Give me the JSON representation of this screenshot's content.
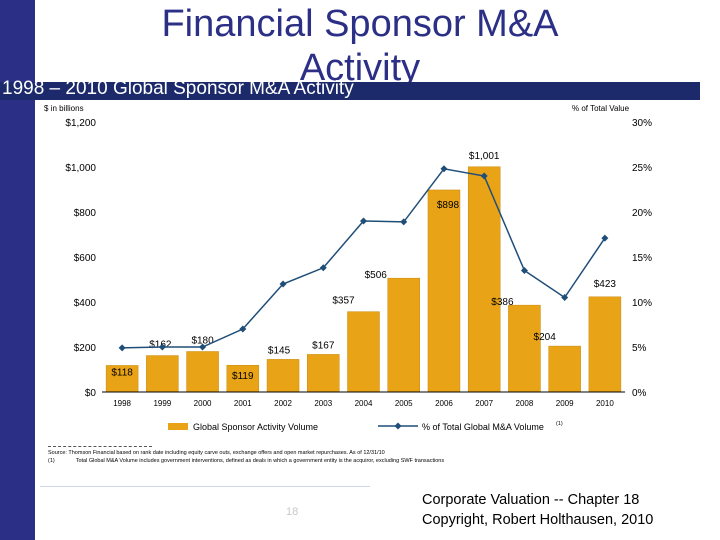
{
  "slide": {
    "title": "Financial Sponsor M&A Activity",
    "subtitle": "1998 – 2010 Global Sponsor M&A Activity",
    "page_number": "18",
    "copyright_line1": "Corporate Valuation -- Chapter 18",
    "copyright_line2": "Copyright, Robert Holthausen, 2010"
  },
  "notes": {
    "source": "Source: Thomson Financial based on rank date including equity carve outs, exchange offers and open market repurchases. As of 12/31/10",
    "footnote_marker": "(1)",
    "footnote": "Total Global M&A Volume includes government interventions, defined as deals in which a government entity is the acquiror, excluding SWF transactions"
  },
  "chart_data": {
    "type": "bar",
    "title": "",
    "left_axis_unit": "$ in billions",
    "right_axis_unit": "% of Total Value",
    "categories": [
      "1998",
      "1999",
      "2000",
      "2001",
      "2002",
      "2003",
      "2004",
      "2005",
      "2006",
      "2007",
      "2008",
      "2009",
      "2010"
    ],
    "ylim": [
      0,
      1200
    ],
    "yticks": [
      0,
      200,
      400,
      600,
      800,
      1000,
      1200
    ],
    "ytick_labels": [
      "$0",
      "$200",
      "$400",
      "$600",
      "$800",
      "$1,000",
      "$1,200"
    ],
    "y2lim": [
      0,
      30
    ],
    "y2ticks": [
      0,
      5,
      10,
      15,
      20,
      25,
      30
    ],
    "y2tick_labels": [
      "0%",
      "5%",
      "10%",
      "15%",
      "20%",
      "25%",
      "30%"
    ],
    "series": [
      {
        "name": "Global Sponsor Activity Volume",
        "type": "bar",
        "axis": "left",
        "color": "#e8a317",
        "values": [
          118,
          162,
          180,
          119,
          145,
          167,
          357,
          506,
          898,
          1001,
          386,
          204,
          423
        ],
        "labels": [
          "$118",
          "$162",
          "$180",
          "$119",
          "$145",
          "$167",
          "$357",
          "$506",
          "$898",
          "$1,001",
          "$386",
          "$204",
          "$423"
        ]
      },
      {
        "name": "% of Total Global M&A Volume",
        "name_superscript": "(1)",
        "type": "line",
        "axis": "right",
        "color": "#1f4e79",
        "values": [
          4.9,
          5.0,
          5.0,
          7.0,
          12.0,
          13.8,
          19.0,
          18.9,
          24.8,
          24.0,
          13.5,
          10.5,
          17.1
        ]
      }
    ],
    "grid": false,
    "legend_position": "bottom"
  },
  "colors": {
    "accent": "#2b2f86",
    "header_band": "#1c2a6b",
    "bar": "#e8a317",
    "line": "#1f4e79"
  }
}
